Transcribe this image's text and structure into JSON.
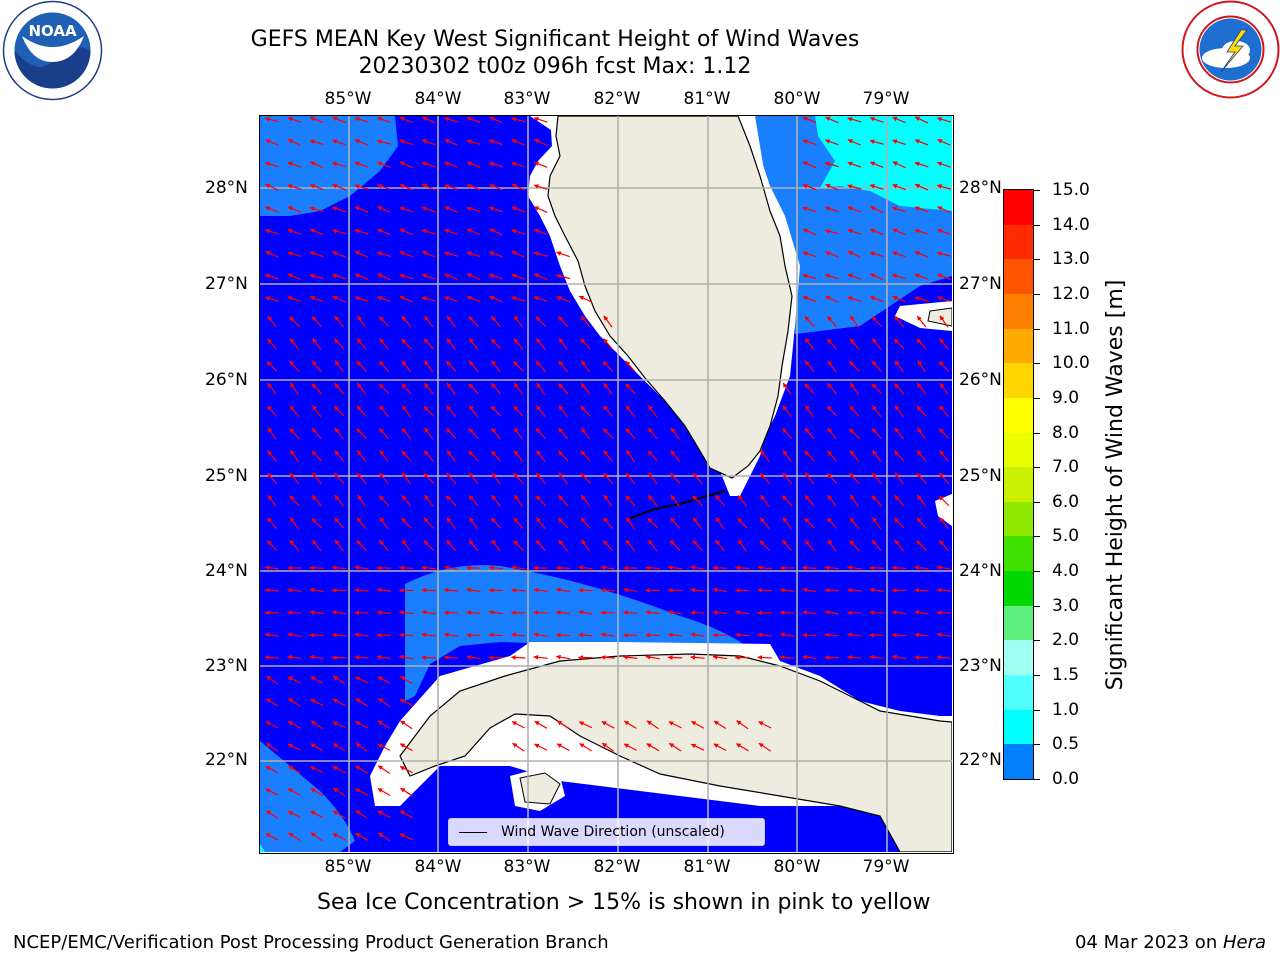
{
  "title_line1": "GEFS MEAN Key West Significant Height of Wind Waves",
  "title_line2": "20230302 t00z 096h fcst   Max: 1.12",
  "lon_ticks": [
    "85°W",
    "84°W",
    "83°W",
    "82°W",
    "81°W",
    "80°W",
    "79°W"
  ],
  "lat_ticks": [
    "28°N",
    "27°N",
    "26°N",
    "25°N",
    "24°N",
    "23°N",
    "22°N"
  ],
  "colorbar": {
    "label": "Significant Height of Wind Waves [m]",
    "ticks": [
      "15.0",
      "14.0",
      "13.0",
      "12.0",
      "11.0",
      "10.0",
      "9.0",
      "8.0",
      "7.0",
      "6.0",
      "5.0",
      "4.0",
      "3.0",
      "2.0",
      "1.5",
      "1.0",
      "0.5",
      "0.0"
    ],
    "colors": [
      "#ff0000",
      "#ff2a00",
      "#ff5500",
      "#ff8000",
      "#ffaa00",
      "#ffd500",
      "#ffff00",
      "#eaff00",
      "#c8f000",
      "#90e800",
      "#40e000",
      "#00d800",
      "#60f080",
      "#a0fff0",
      "#50ffff",
      "#00ffff",
      "#0080ff",
      "#0000ff"
    ]
  },
  "legend": {
    "label": "Wind Wave Direction (unscaled)"
  },
  "ice_note": "Sea Ice Concentration > 15% is shown in pink to yellow",
  "footer_left": "NCEP/EMC/Verification Post Processing Product Generation Branch",
  "footer_date": "04 Mar 2023 on ",
  "footer_machine": "Hera",
  "logos": {
    "left": "NOAA",
    "right": "NATIONAL WEATHER SERVICE"
  },
  "map_colors": {
    "ocean": "#0000ff",
    "light_wave": "#1a7fff",
    "cyan_wave": "#00ffff",
    "land": "#eeecdf",
    "arrow": "#ff0000",
    "grid": "#b0b0b0"
  }
}
